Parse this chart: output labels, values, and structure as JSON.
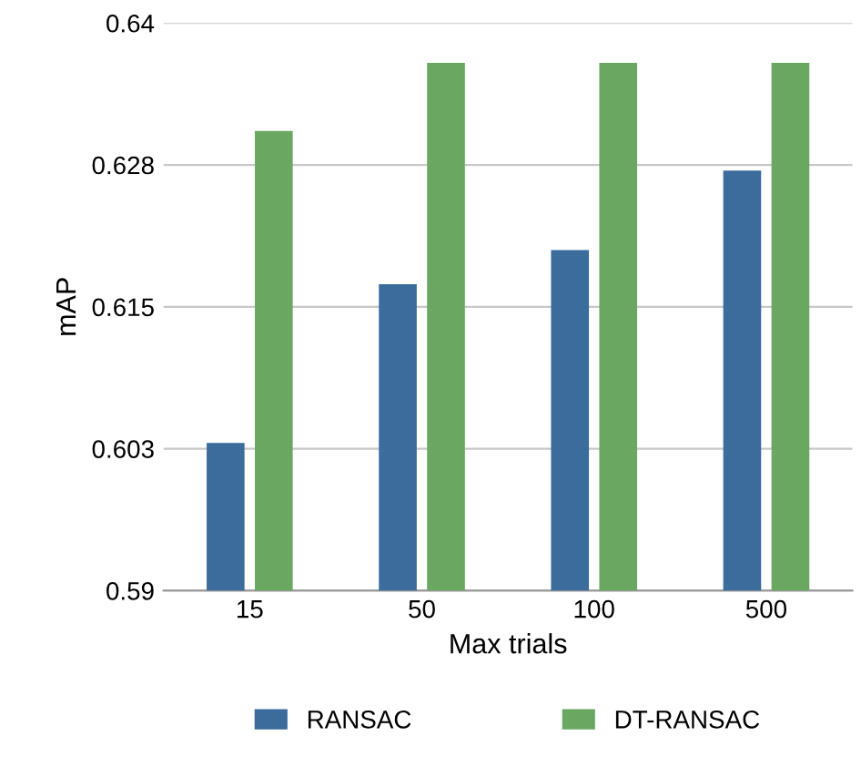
{
  "chart_data": {
    "type": "bar",
    "xlabel": "Max trials",
    "ylabel": "mAP",
    "categories": [
      "15",
      "50",
      "100",
      "500"
    ],
    "series": [
      {
        "name": "RANSAC",
        "color": "#3b6c9c",
        "values": [
          0.603,
          0.617,
          0.62,
          0.627
        ]
      },
      {
        "name": "DT-RANSAC",
        "color": "#6aa862",
        "values": [
          0.6305,
          0.6365,
          0.6365,
          0.6365
        ]
      }
    ],
    "ylim": [
      0.59,
      0.64
    ],
    "yticks": [
      0.59,
      {
        "value": 0.6025,
        "label": "0.603"
      },
      0.615,
      {
        "value": 0.6275,
        "label": "0.628"
      },
      0.64
    ],
    "grid": "y",
    "legend": "bottom"
  }
}
